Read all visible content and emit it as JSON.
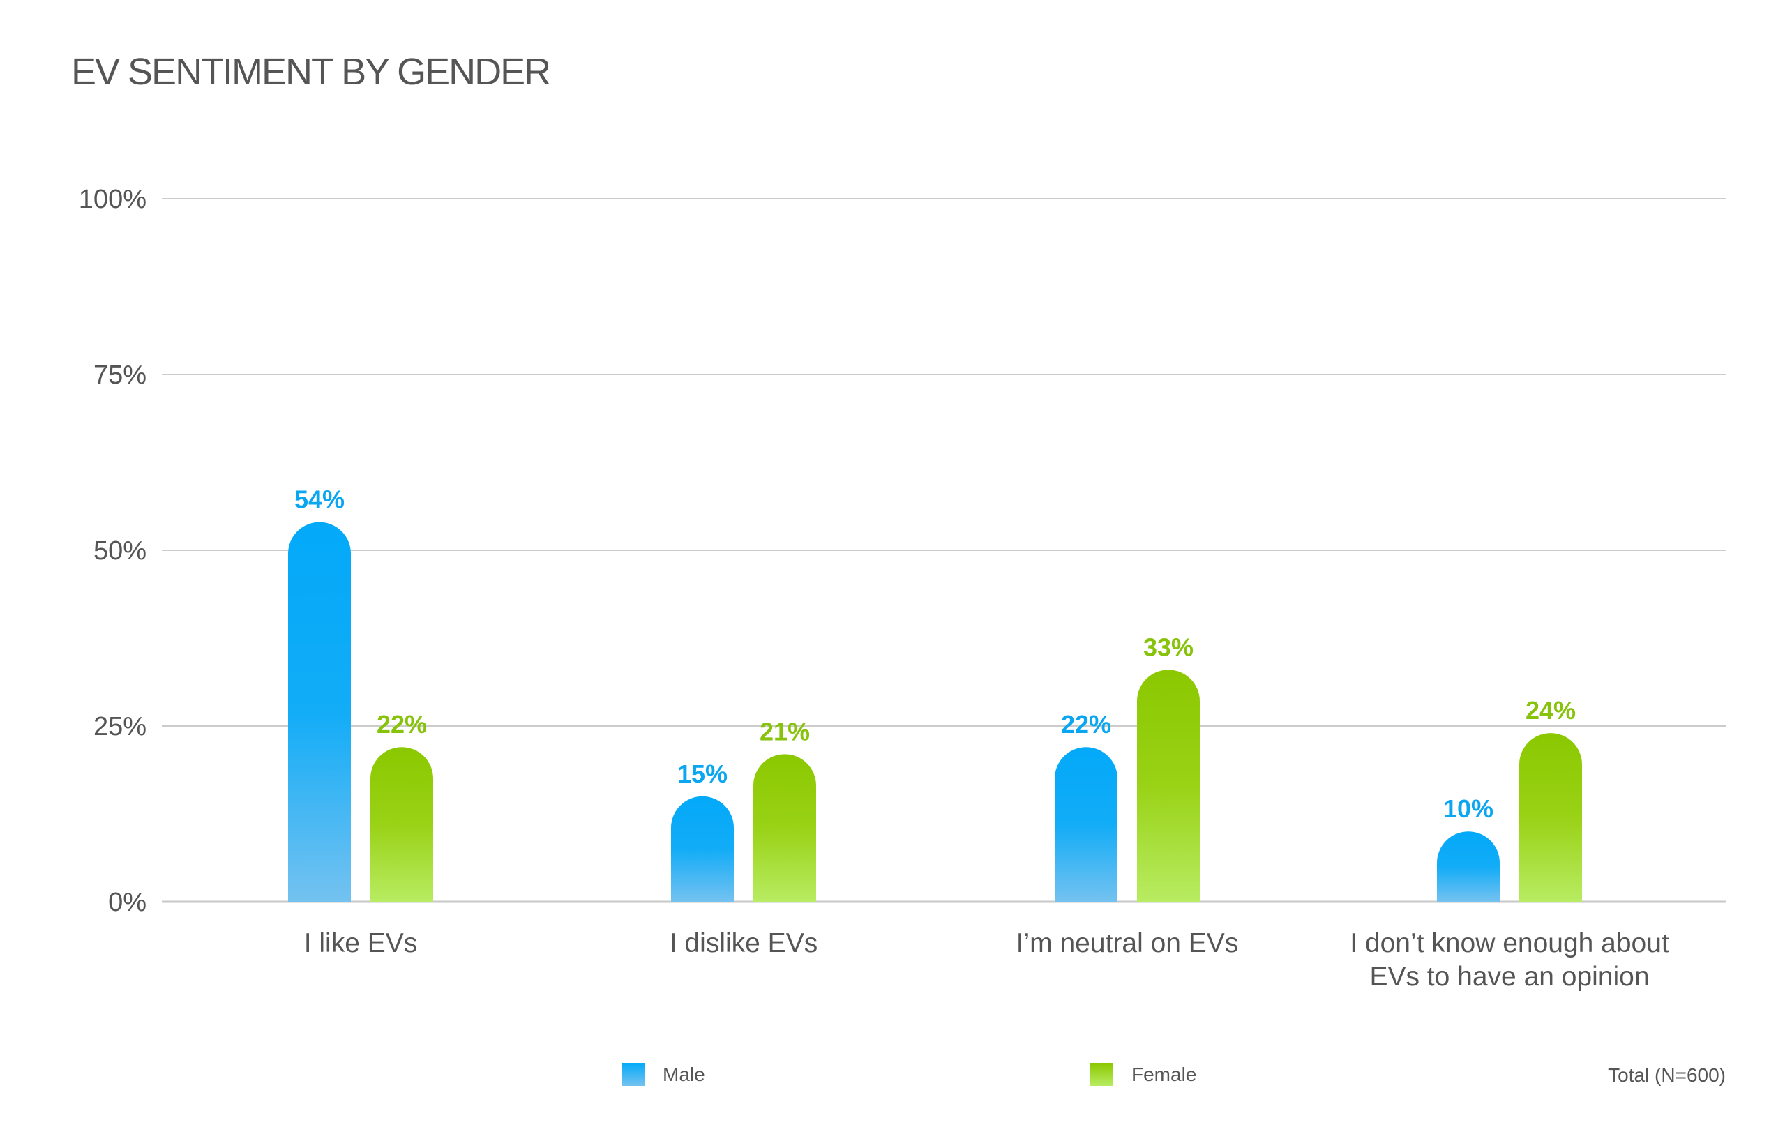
{
  "chart_data": {
    "type": "bar",
    "title": "EV SENTIMENT BY GENDER",
    "xlabel": "",
    "ylabel": "",
    "ylim": [
      0,
      100
    ],
    "yticks": [
      0,
      25,
      50,
      75,
      100
    ],
    "ytick_labels": [
      "0%",
      "25%",
      "50%",
      "75%",
      "100%"
    ],
    "grid": true,
    "categories": [
      [
        "I like EVs"
      ],
      [
        "I dislike EVs"
      ],
      [
        "I’m neutral on EVs"
      ],
      [
        "I don’t know enough about",
        "EVs to have an opinion"
      ]
    ],
    "series": [
      {
        "name": "Male",
        "values": [
          54,
          15,
          22,
          10
        ],
        "labels": [
          "54%",
          "15%",
          "22%",
          "10%"
        ],
        "color_top": "#03a9f9",
        "color_bottom": "#74c2f0",
        "label_color": "#0aa6f2"
      },
      {
        "name": "Female",
        "values": [
          22,
          21,
          33,
          24
        ],
        "labels": [
          "22%",
          "21%",
          "33%",
          "24%"
        ],
        "color_top": "#8bc800",
        "color_bottom": "#b8ec62",
        "label_color": "#88c30c"
      }
    ],
    "legend": {
      "placement": "bottom-center",
      "entries": [
        "Male",
        "Female"
      ]
    },
    "note": "Total (N=600)"
  }
}
